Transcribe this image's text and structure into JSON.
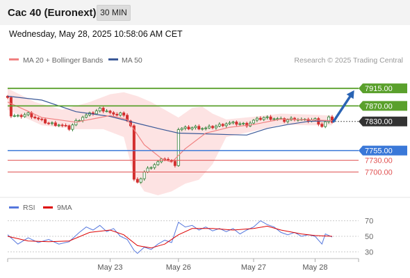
{
  "header": {
    "title": "Cac 40 (Euronext)",
    "interval": "30 MIN"
  },
  "timestamp": "Wednesday, May 28, 2025 10:58:06 AM CET",
  "legend": {
    "ma20_label": "MA 20 + Bollinger Bands",
    "ma50_label": "MA 50",
    "attribution": "Research © 2025 Trading Central"
  },
  "colors": {
    "ma20": "#f08080",
    "ma50": "#3b5998",
    "bollinger_fill": "#fde0e0",
    "resistance": "#5aa02c",
    "support_blue": "#3a78d8",
    "support_red": "#e05050",
    "current": "#333333",
    "candle_up": "#2e7d32",
    "candle_down": "#d32f2f",
    "arrow": "#2a64b4",
    "rsi": "#5577dd",
    "rsi_ma": "#dd0000"
  },
  "chart_data": [
    {
      "type": "candlestick",
      "ylim": [
        7640,
        7935
      ],
      "x_ticks": [
        "May 23",
        "May 26",
        "May 27",
        "May 28"
      ],
      "levels": [
        {
          "label": "7915.00",
          "value": 7915,
          "kind": "resistance"
        },
        {
          "label": "7870.00",
          "value": 7870,
          "kind": "resistance"
        },
        {
          "label": "7830.00",
          "value": 7830,
          "kind": "current"
        },
        {
          "label": "7755.00",
          "value": 7755,
          "kind": "support-blue"
        },
        {
          "label": "7730.00",
          "value": 7730,
          "kind": "support-red"
        },
        {
          "label": "7700.00",
          "value": 7700,
          "kind": "support-red"
        }
      ],
      "close_path": [
        {
          "x": 0,
          "y": 7895
        },
        {
          "x": 1,
          "y": 7845
        },
        {
          "x": 3,
          "y": 7842
        },
        {
          "x": 6,
          "y": 7850
        },
        {
          "x": 9,
          "y": 7835
        },
        {
          "x": 12,
          "y": 7825
        },
        {
          "x": 15,
          "y": 7822
        },
        {
          "x": 18,
          "y": 7812
        },
        {
          "x": 20,
          "y": 7830
        },
        {
          "x": 22,
          "y": 7842
        },
        {
          "x": 25,
          "y": 7852
        },
        {
          "x": 27,
          "y": 7862
        },
        {
          "x": 29,
          "y": 7858
        },
        {
          "x": 31,
          "y": 7845
        },
        {
          "x": 33,
          "y": 7852
        },
        {
          "x": 35,
          "y": 7835
        },
        {
          "x": 36,
          "y": 7820
        },
        {
          "x": 37,
          "y": 7680
        },
        {
          "x": 38,
          "y": 7670
        },
        {
          "x": 40,
          "y": 7700
        },
        {
          "x": 42,
          "y": 7715
        },
        {
          "x": 44,
          "y": 7725
        },
        {
          "x": 46,
          "y": 7735
        },
        {
          "x": 48,
          "y": 7725
        },
        {
          "x": 49,
          "y": 7720
        },
        {
          "x": 50,
          "y": 7810
        },
        {
          "x": 52,
          "y": 7812
        },
        {
          "x": 55,
          "y": 7815
        },
        {
          "x": 58,
          "y": 7812
        },
        {
          "x": 61,
          "y": 7818
        },
        {
          "x": 64,
          "y": 7825
        },
        {
          "x": 67,
          "y": 7825
        },
        {
          "x": 70,
          "y": 7822
        },
        {
          "x": 72,
          "y": 7832
        },
        {
          "x": 75,
          "y": 7840
        },
        {
          "x": 78,
          "y": 7838
        },
        {
          "x": 81,
          "y": 7832
        },
        {
          "x": 84,
          "y": 7838
        },
        {
          "x": 87,
          "y": 7832
        },
        {
          "x": 90,
          "y": 7835
        },
        {
          "x": 92,
          "y": 7818
        },
        {
          "x": 94,
          "y": 7838
        },
        {
          "x": 95,
          "y": 7830
        }
      ],
      "ma20": [
        {
          "x": 0,
          "y": 7880
        },
        {
          "x": 10,
          "y": 7840
        },
        {
          "x": 20,
          "y": 7828
        },
        {
          "x": 30,
          "y": 7845
        },
        {
          "x": 35,
          "y": 7835
        },
        {
          "x": 40,
          "y": 7770
        },
        {
          "x": 45,
          "y": 7735
        },
        {
          "x": 48,
          "y": 7725
        },
        {
          "x": 52,
          "y": 7760
        },
        {
          "x": 58,
          "y": 7800
        },
        {
          "x": 65,
          "y": 7815
        },
        {
          "x": 72,
          "y": 7822
        },
        {
          "x": 80,
          "y": 7836
        },
        {
          "x": 88,
          "y": 7834
        },
        {
          "x": 95,
          "y": 7832
        }
      ],
      "ma50": [
        {
          "x": 0,
          "y": 7895
        },
        {
          "x": 10,
          "y": 7885
        },
        {
          "x": 20,
          "y": 7855
        },
        {
          "x": 30,
          "y": 7843
        },
        {
          "x": 38,
          "y": 7825
        },
        {
          "x": 45,
          "y": 7810
        },
        {
          "x": 50,
          "y": 7800
        },
        {
          "x": 58,
          "y": 7798
        },
        {
          "x": 65,
          "y": 7796
        },
        {
          "x": 70,
          "y": 7795
        },
        {
          "x": 76,
          "y": 7812
        },
        {
          "x": 82,
          "y": 7822
        },
        {
          "x": 88,
          "y": 7830
        },
        {
          "x": 95,
          "y": 7832
        }
      ],
      "bollinger_upper": [
        {
          "x": 0,
          "y": 7915
        },
        {
          "x": 8,
          "y": 7880
        },
        {
          "x": 16,
          "y": 7860
        },
        {
          "x": 24,
          "y": 7880
        },
        {
          "x": 30,
          "y": 7900
        },
        {
          "x": 34,
          "y": 7905
        },
        {
          "x": 38,
          "y": 7895
        },
        {
          "x": 42,
          "y": 7880
        },
        {
          "x": 46,
          "y": 7860
        },
        {
          "x": 50,
          "y": 7840
        },
        {
          "x": 54,
          "y": 7865
        },
        {
          "x": 57,
          "y": 7868
        },
        {
          "x": 60,
          "y": 7850
        },
        {
          "x": 64,
          "y": 7835
        },
        {
          "x": 72,
          "y": 7842
        },
        {
          "x": 80,
          "y": 7850
        },
        {
          "x": 88,
          "y": 7848
        },
        {
          "x": 95,
          "y": 7845
        }
      ],
      "bollinger_lower": [
        {
          "x": 95,
          "y": 7820
        },
        {
          "x": 88,
          "y": 7820
        },
        {
          "x": 80,
          "y": 7822
        },
        {
          "x": 72,
          "y": 7805
        },
        {
          "x": 64,
          "y": 7790
        },
        {
          "x": 60,
          "y": 7720
        },
        {
          "x": 56,
          "y": 7680
        },
        {
          "x": 52,
          "y": 7670
        },
        {
          "x": 48,
          "y": 7650
        },
        {
          "x": 44,
          "y": 7640
        },
        {
          "x": 40,
          "y": 7650
        },
        {
          "x": 37,
          "y": 7690
        },
        {
          "x": 34,
          "y": 7790
        },
        {
          "x": 28,
          "y": 7810
        },
        {
          "x": 20,
          "y": 7810
        },
        {
          "x": 10,
          "y": 7820
        },
        {
          "x": 0,
          "y": 7860
        }
      ],
      "projection": {
        "from": {
          "x": 95,
          "y": 7830
        },
        "to": {
          "x": 101,
          "y": 7915
        }
      }
    },
    {
      "type": "line",
      "legend": [
        "RSI",
        "9MA"
      ],
      "ylim": [
        25,
        75
      ],
      "y_ticks": [
        70,
        50,
        30
      ],
      "rsi": [
        {
          "x": 0,
          "y": 52
        },
        {
          "x": 3,
          "y": 40
        },
        {
          "x": 6,
          "y": 48
        },
        {
          "x": 9,
          "y": 42
        },
        {
          "x": 12,
          "y": 46
        },
        {
          "x": 15,
          "y": 40
        },
        {
          "x": 18,
          "y": 43
        },
        {
          "x": 21,
          "y": 55
        },
        {
          "x": 23,
          "y": 62
        },
        {
          "x": 25,
          "y": 58
        },
        {
          "x": 27,
          "y": 64
        },
        {
          "x": 29,
          "y": 56
        },
        {
          "x": 31,
          "y": 60
        },
        {
          "x": 33,
          "y": 50
        },
        {
          "x": 35,
          "y": 46
        },
        {
          "x": 37,
          "y": 32
        },
        {
          "x": 38,
          "y": 28
        },
        {
          "x": 40,
          "y": 36
        },
        {
          "x": 42,
          "y": 33
        },
        {
          "x": 44,
          "y": 40
        },
        {
          "x": 46,
          "y": 45
        },
        {
          "x": 48,
          "y": 42
        },
        {
          "x": 50,
          "y": 68
        },
        {
          "x": 52,
          "y": 62
        },
        {
          "x": 54,
          "y": 64
        },
        {
          "x": 56,
          "y": 58
        },
        {
          "x": 58,
          "y": 62
        },
        {
          "x": 60,
          "y": 57
        },
        {
          "x": 62,
          "y": 60
        },
        {
          "x": 64,
          "y": 56
        },
        {
          "x": 66,
          "y": 60
        },
        {
          "x": 68,
          "y": 53
        },
        {
          "x": 70,
          "y": 58
        },
        {
          "x": 72,
          "y": 62
        },
        {
          "x": 74,
          "y": 70
        },
        {
          "x": 76,
          "y": 65
        },
        {
          "x": 78,
          "y": 62
        },
        {
          "x": 80,
          "y": 55
        },
        {
          "x": 82,
          "y": 52
        },
        {
          "x": 84,
          "y": 55
        },
        {
          "x": 86,
          "y": 50
        },
        {
          "x": 88,
          "y": 52
        },
        {
          "x": 90,
          "y": 50
        },
        {
          "x": 92,
          "y": 40
        },
        {
          "x": 93,
          "y": 53
        },
        {
          "x": 95,
          "y": 49
        }
      ],
      "rsi_ma": [
        {
          "x": 0,
          "y": 50
        },
        {
          "x": 6,
          "y": 44
        },
        {
          "x": 12,
          "y": 43
        },
        {
          "x": 18,
          "y": 44
        },
        {
          "x": 24,
          "y": 55
        },
        {
          "x": 30,
          "y": 58
        },
        {
          "x": 34,
          "y": 52
        },
        {
          "x": 38,
          "y": 38
        },
        {
          "x": 42,
          "y": 35
        },
        {
          "x": 46,
          "y": 40
        },
        {
          "x": 50,
          "y": 52
        },
        {
          "x": 54,
          "y": 60
        },
        {
          "x": 60,
          "y": 60
        },
        {
          "x": 66,
          "y": 58
        },
        {
          "x": 72,
          "y": 60
        },
        {
          "x": 76,
          "y": 63
        },
        {
          "x": 80,
          "y": 58
        },
        {
          "x": 86,
          "y": 53
        },
        {
          "x": 90,
          "y": 51
        },
        {
          "x": 95,
          "y": 50
        }
      ]
    }
  ]
}
